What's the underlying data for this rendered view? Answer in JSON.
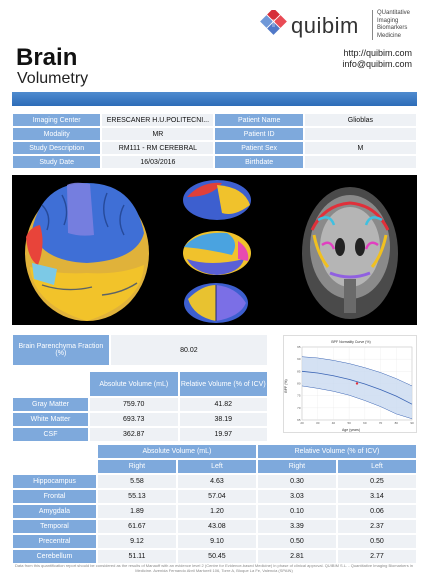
{
  "brand": {
    "name": "quibim",
    "tagline": [
      "QUantitative",
      "Imaging",
      "Biomarkers",
      "Medicine"
    ]
  },
  "header": {
    "title_main": "Brain",
    "title_sub": "Volumetry",
    "website": "http://quibim.com",
    "email": "info@quibim.com"
  },
  "patient_info": {
    "rows": [
      {
        "l1": "Imaging Center",
        "v1": "ERESCANER H.U.POLITECNI...",
        "l2": "Patient Name",
        "v2": "Glioblas"
      },
      {
        "l1": "Modality",
        "v1": "MR",
        "l2": "Patient ID",
        "v2": ""
      },
      {
        "l1": "Study Description",
        "v1": "RM111 - RM CEREBRAL",
        "l2": "Patient Sex",
        "v2": "M"
      },
      {
        "l1": "Study Date",
        "v1": "16/03/2016",
        "l2": "Birthdate",
        "v2": ""
      }
    ]
  },
  "bpf": {
    "label": "Brain Parenchyma Fraction (%)",
    "value": "80.02"
  },
  "volumes": {
    "col_abs": "Absolute Volume (mL)",
    "col_rel": "Relative Volume (% of ICV)",
    "rows": [
      {
        "name": "Gray Matter",
        "abs": "759.70",
        "rel": "41.82"
      },
      {
        "name": "White Matter",
        "abs": "693.73",
        "rel": "38.19"
      },
      {
        "name": "CSF",
        "abs": "362.87",
        "rel": "19.97"
      }
    ]
  },
  "regional": {
    "col_abs": "Absolute Volume (mL)",
    "col_rel": "Relative Volume (% of ICV)",
    "right": "Right",
    "left": "Left",
    "rows": [
      {
        "name": "Hippocampus",
        "ar": "5.58",
        "al": "4.63",
        "rr": "0.30",
        "rl": "0.25"
      },
      {
        "name": "Frontal",
        "ar": "55.13",
        "al": "57.04",
        "rr": "3.03",
        "rl": "3.14"
      },
      {
        "name": "Amygdala",
        "ar": "1.89",
        "al": "1.20",
        "rr": "0.10",
        "rl": "0.06"
      },
      {
        "name": "Temporal",
        "ar": "61.67",
        "al": "43.08",
        "rr": "3.39",
        "rl": "2.37"
      },
      {
        "name": "Precentral",
        "ar": "9.12",
        "al": "9.10",
        "rr": "0.50",
        "rl": "0.50"
      },
      {
        "name": "Cerebellum",
        "ar": "51.11",
        "al": "50.45",
        "rr": "2.81",
        "rl": "2.77"
      }
    ]
  },
  "chart_data": {
    "type": "line",
    "title": "BPF Normality Curve (%)",
    "xlabel": "Age (years)",
    "ylabel": "BPF (%)",
    "xlim": [
      20,
      90
    ],
    "ylim": [
      65,
      95
    ],
    "series": [
      {
        "x": [
          20,
          30,
          40,
          50,
          60,
          70,
          80,
          90
        ],
        "values": [
          91,
          90.5,
          89.5,
          88.2,
          86.5,
          84.5,
          82,
          79
        ]
      },
      {
        "x": [
          20,
          30,
          40,
          50,
          60,
          70,
          80,
          90
        ],
        "values": [
          85,
          84.3,
          83.2,
          81.7,
          79.8,
          77.5,
          74.8,
          71.5
        ]
      },
      {
        "x": [
          20,
          30,
          40,
          50,
          60,
          70,
          80,
          90
        ],
        "values": [
          79,
          78,
          76.8,
          75.2,
          73,
          70.5,
          67.5,
          65.5
        ]
      }
    ],
    "point": {
      "x": 55,
      "y": 80.02
    },
    "colors": {
      "band": "#c9d9f0",
      "line": "#3a64b4",
      "point": "#e0303a"
    }
  },
  "disclaimer": "Data from this quantification report should be considered as the results of Manaoff with an evidence level 2 (Centre for Evidence-based Medicine) in phase of clinical approval. QUIBIM S.L. - Quantitative Imaging Biomarkers in Medicine. Avenida Fernando Abril Martorell 106, Torre A, Bloque La Fe, Valencia (SPAIN)"
}
